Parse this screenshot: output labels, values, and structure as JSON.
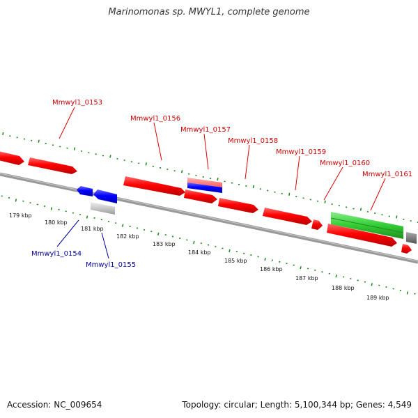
{
  "title": "Marinomonas sp. MWYL1, complete genome",
  "footer": {
    "accession": "Accession: NC_009654",
    "summary": "Topology: circular; Length: 5,100,344 bp; Genes: 4,549"
  },
  "colors": {
    "forward_gene": "#ff0000",
    "reverse_gene": "#0000ff",
    "rna_gene": "#33cc33",
    "pseudo_gene": "#bbbbbb",
    "other_feature": "#888888",
    "backbone": "#888888",
    "tick": "#118811",
    "forward_label": "#cc0000",
    "reverse_label": "#000099"
  },
  "ticks": {
    "major_labels": [
      "179 kbp",
      "180 kbp",
      "181 kbp",
      "182 kbp",
      "183 kbp",
      "184 kbp",
      "185 kbp",
      "186 kbp",
      "187 kbp",
      "188 kbp",
      "189 kbp"
    ]
  },
  "gene_labels": {
    "forward": [
      "Mmwyl1_0153",
      "Mmwyl1_0156",
      "Mmwyl1_0157",
      "Mmwyl1_0158",
      "Mmwyl1_0159",
      "Mmwyl1_0160",
      "Mmwyl1_0161"
    ],
    "reverse": [
      "Mmwyl1_0154",
      "Mmwyl1_0155"
    ]
  }
}
